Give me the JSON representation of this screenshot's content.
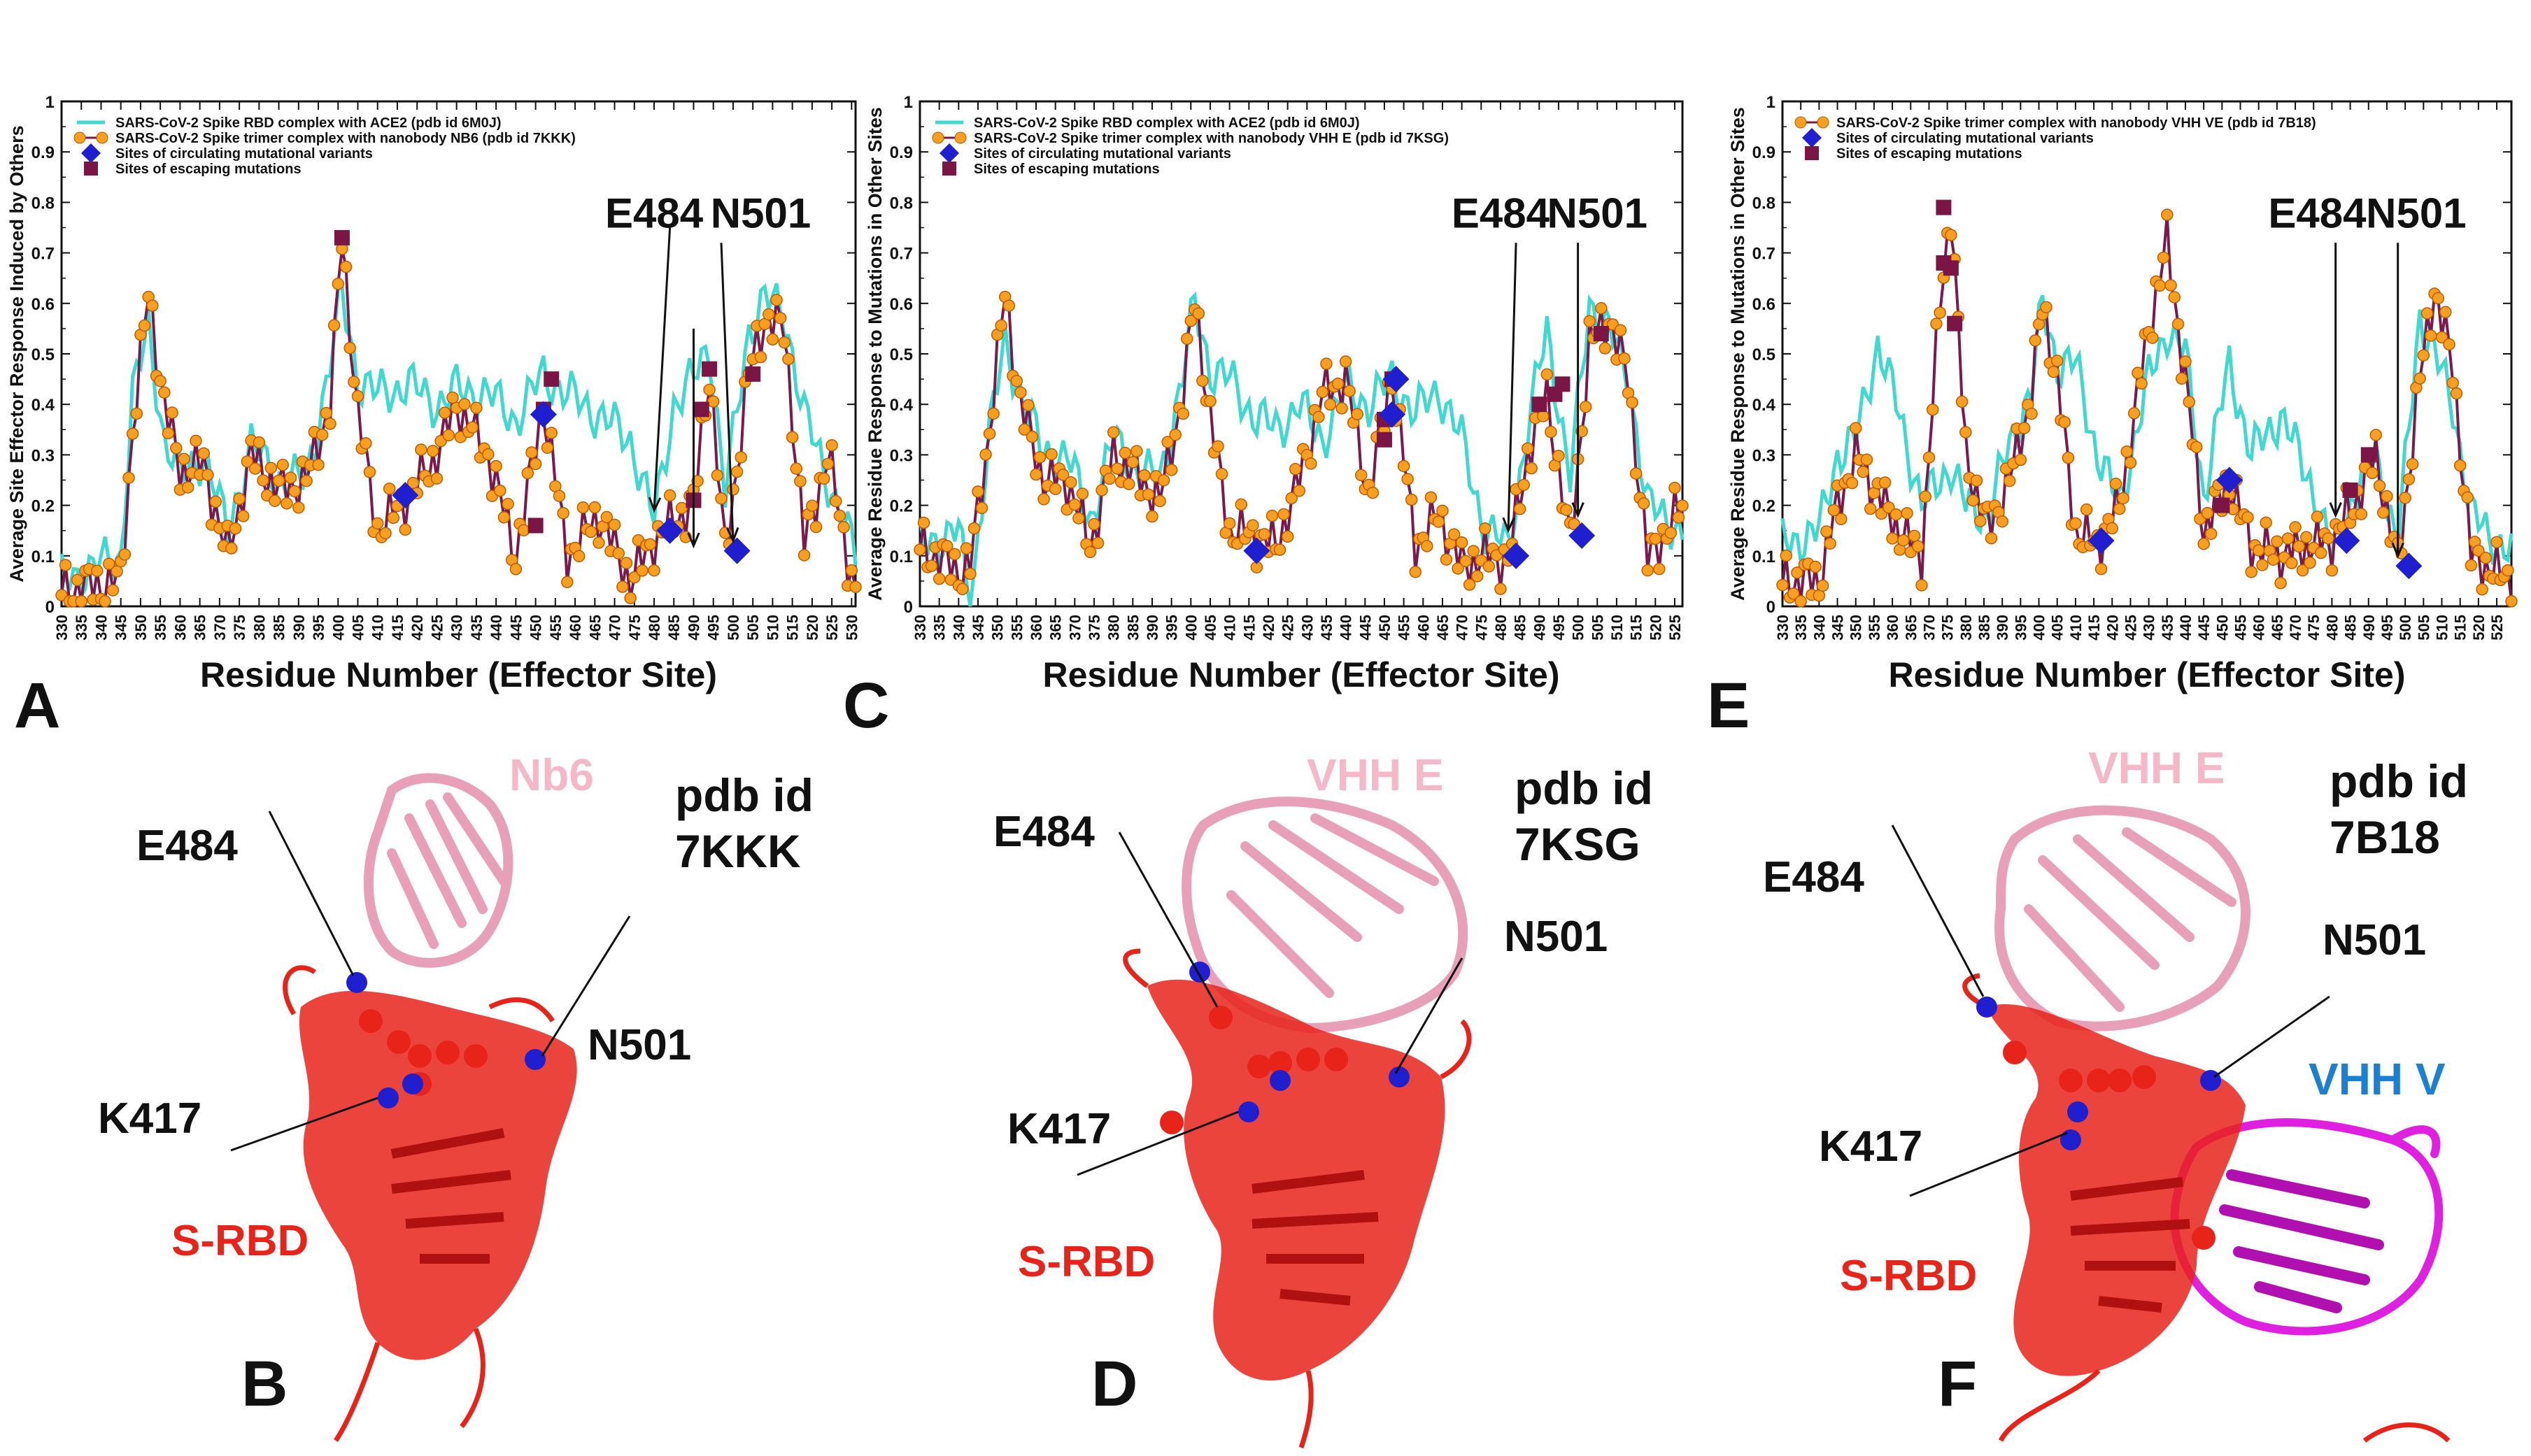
{
  "figure": {
    "panel_letters": [
      "A",
      "B",
      "C",
      "D",
      "E",
      "F"
    ]
  },
  "colors": {
    "ace2": "#3fd9d0",
    "trimer_line": "#7a1a4a",
    "trimer_marker": "#f7a020",
    "trimer_marker_edge": "#c05a00",
    "circulating": "#1f1fcf",
    "escaping": "#7a1545",
    "arrow": "#111111",
    "rbd": "#e8231a",
    "nanobody": "#e8a0b8",
    "vhhv": "#e020e0"
  },
  "chart_data": [
    {
      "type": "line",
      "panel": "A",
      "ylabel": "Average Site Effector Response Induced  by Others",
      "xlabel": "Residue Number (Effector Site)",
      "xlim": [
        330,
        531
      ],
      "ylim": [
        0,
        1
      ],
      "xticks": [
        330,
        335,
        340,
        345,
        350,
        355,
        360,
        365,
        370,
        375,
        380,
        385,
        390,
        395,
        400,
        405,
        410,
        415,
        420,
        425,
        430,
        435,
        440,
        445,
        450,
        455,
        460,
        465,
        470,
        475,
        480,
        485,
        490,
        495,
        500,
        505,
        510,
        515,
        520,
        525,
        530
      ],
      "yticks": [
        0,
        0.1,
        0.2,
        0.3,
        0.4,
        0.5,
        0.6,
        0.7,
        0.8,
        0.9,
        1
      ],
      "legend": [
        {
          "label": "SARS-CoV-2 Spike RBD complex with ACE2  (pdb id 6M0J)",
          "symbol": "line"
        },
        {
          "label": "SARS-CoV-2 Spike trimer complex with nanobody NB6 (pdb id 7KKK)",
          "symbol": "line-circle"
        },
        {
          "label": "Sites of circulating mutational variants",
          "symbol": "diamond"
        },
        {
          "label": "Sites of escaping mutations",
          "symbol": "square"
        }
      ],
      "labels": [
        {
          "text": "E484",
          "x": 480,
          "y": 0.75
        },
        {
          "text": "N501",
          "x": 507,
          "y": 0.75
        }
      ],
      "arrows": [
        {
          "from": [
            484,
            0.75
          ],
          "to": [
            480,
            0.19
          ]
        },
        {
          "from": [
            490,
            0.55
          ],
          "to": [
            490,
            0.12
          ]
        },
        {
          "from": [
            497,
            0.72
          ],
          "to": [
            500,
            0.13
          ]
        }
      ],
      "anchors": {
        "x": [
          330,
          345,
          348,
          352,
          356,
          360,
          366,
          372,
          378,
          385,
          392,
          398,
          401,
          405,
          410,
          418,
          425,
          430,
          438,
          445,
          452,
          458,
          466,
          474,
          480,
          485,
          490,
          494,
          498,
          504,
          508,
          513,
          518,
          524,
          531
        ]
      },
      "ace2": [
        0.05,
        0.1,
        0.42,
        0.55,
        0.33,
        0.26,
        0.3,
        0.15,
        0.32,
        0.25,
        0.25,
        0.48,
        0.62,
        0.45,
        0.42,
        0.44,
        0.4,
        0.43,
        0.42,
        0.37,
        0.46,
        0.42,
        0.38,
        0.33,
        0.17,
        0.4,
        0.45,
        0.52,
        0.22,
        0.55,
        0.61,
        0.58,
        0.38,
        0.25,
        0.1
      ],
      "trimer": [
        0.03,
        0.05,
        0.35,
        0.62,
        0.4,
        0.27,
        0.28,
        0.1,
        0.3,
        0.23,
        0.25,
        0.4,
        0.73,
        0.38,
        0.15,
        0.22,
        0.3,
        0.4,
        0.3,
        0.1,
        0.4,
        0.1,
        0.18,
        0.05,
        0.13,
        0.17,
        0.2,
        0.47,
        0.1,
        0.46,
        0.57,
        0.55,
        0.12,
        0.3,
        0.02
      ],
      "circulating": [
        {
          "x": 417,
          "y": 0.22
        },
        {
          "x": 452,
          "y": 0.38
        },
        {
          "x": 484,
          "y": 0.15
        },
        {
          "x": 501,
          "y": 0.11
        }
      ],
      "escaping": [
        {
          "x": 401,
          "y": 0.73
        },
        {
          "x": 450,
          "y": 0.16
        },
        {
          "x": 452,
          "y": 0.39
        },
        {
          "x": 454,
          "y": 0.45
        },
        {
          "x": 490,
          "y": 0.21
        },
        {
          "x": 492,
          "y": 0.39
        },
        {
          "x": 494,
          "y": 0.47
        },
        {
          "x": 505,
          "y": 0.46
        }
      ]
    },
    {
      "type": "line",
      "panel": "C",
      "ylabel": "Average  Residue Response  to Mutations in Other Sites",
      "xlabel": "Residue Number (Effector Site)",
      "xlim": [
        330,
        527
      ],
      "ylim": [
        0,
        1
      ],
      "xticks": [
        330,
        335,
        340,
        345,
        350,
        355,
        360,
        365,
        370,
        375,
        380,
        385,
        390,
        395,
        400,
        405,
        410,
        415,
        420,
        425,
        430,
        435,
        440,
        445,
        450,
        455,
        460,
        465,
        470,
        475,
        480,
        485,
        490,
        495,
        500,
        505,
        510,
        515,
        520,
        525
      ],
      "yticks": [
        0,
        0.1,
        0.2,
        0.3,
        0.4,
        0.5,
        0.6,
        0.7,
        0.8,
        0.9,
        1
      ],
      "legend": [
        {
          "label": "SARS-CoV-2 Spike RBD complex with ACE2 (pdb id 6M0J)",
          "symbol": "line"
        },
        {
          "label": "SARS-CoV-2 Spike trimer complex with nanobody VHH E (pdb id 7KSG)",
          "symbol": "line-circle"
        },
        {
          "label": "Sites of circulating mutational variants",
          "symbol": "diamond"
        },
        {
          "label": "Sites of escaping mutations",
          "symbol": "square"
        }
      ],
      "labels": [
        {
          "text": "E484",
          "x": 480,
          "y": 0.75
        },
        {
          "text": "N501",
          "x": 505,
          "y": 0.75
        }
      ],
      "arrows": [
        {
          "from": [
            484,
            0.72
          ],
          "to": [
            482,
            0.15
          ]
        },
        {
          "from": [
            500,
            0.72
          ],
          "to": [
            500,
            0.18
          ]
        }
      ],
      "anchors": {
        "x": [
          330,
          340,
          343,
          348,
          352,
          356,
          362,
          368,
          374,
          380,
          386,
          392,
          398,
          401,
          405,
          410,
          416,
          422,
          428,
          434,
          440,
          446,
          452,
          458,
          464,
          470,
          476,
          482,
          487,
          492,
          498,
          503,
          508,
          513,
          518,
          527
        ]
      },
      "ace2": [
        0.12,
        0.15,
        0.0,
        0.35,
        0.52,
        0.42,
        0.3,
        0.3,
        0.17,
        0.33,
        0.27,
        0.25,
        0.46,
        0.6,
        0.47,
        0.45,
        0.38,
        0.35,
        0.4,
        0.33,
        0.43,
        0.4,
        0.45,
        0.38,
        0.43,
        0.33,
        0.15,
        0.12,
        0.35,
        0.55,
        0.25,
        0.6,
        0.55,
        0.45,
        0.2,
        0.15
      ],
      "trimer": [
        0.12,
        0.07,
        0.08,
        0.35,
        0.62,
        0.4,
        0.25,
        0.25,
        0.12,
        0.3,
        0.26,
        0.21,
        0.42,
        0.61,
        0.37,
        0.15,
        0.14,
        0.12,
        0.25,
        0.42,
        0.45,
        0.22,
        0.46,
        0.12,
        0.18,
        0.08,
        0.1,
        0.09,
        0.3,
        0.42,
        0.12,
        0.52,
        0.57,
        0.45,
        0.09,
        0.2
      ],
      "circulating": [
        {
          "x": 417,
          "y": 0.11
        },
        {
          "x": 452,
          "y": 0.38
        },
        {
          "x": 453,
          "y": 0.45
        },
        {
          "x": 484,
          "y": 0.1
        },
        {
          "x": 501,
          "y": 0.14
        }
      ],
      "escaping": [
        {
          "x": 450,
          "y": 0.33
        },
        {
          "x": 450,
          "y": 0.37
        },
        {
          "x": 452,
          "y": 0.45
        },
        {
          "x": 490,
          "y": 0.4
        },
        {
          "x": 494,
          "y": 0.42
        },
        {
          "x": 496,
          "y": 0.44
        },
        {
          "x": 506,
          "y": 0.54
        }
      ]
    },
    {
      "type": "line",
      "panel": "E",
      "ylabel": "Average Residue Response to Mutations in Other Sites",
      "xlabel": "Residue Number (Effector Site)",
      "xlim": [
        330,
        529
      ],
      "ylim": [
        0,
        1
      ],
      "xticks": [
        330,
        335,
        340,
        345,
        350,
        355,
        360,
        365,
        370,
        375,
        380,
        385,
        390,
        395,
        400,
        405,
        410,
        415,
        420,
        425,
        430,
        435,
        440,
        445,
        450,
        455,
        460,
        465,
        470,
        475,
        480,
        485,
        490,
        495,
        500,
        505,
        510,
        515,
        520,
        525
      ],
      "yticks": [
        0,
        0.1,
        0.2,
        0.3,
        0.4,
        0.5,
        0.6,
        0.7,
        0.8,
        0.9,
        1
      ],
      "legend": [
        {
          "label": "SARS-CoV-2 Spike trimer complex with nanobody VHH VE (pdb id 7B18)",
          "symbol": "line-circle"
        },
        {
          "label": "Sites of circulating mutational variants",
          "symbol": "diamond"
        },
        {
          "label": "Sites of escaping mutations",
          "symbol": "square"
        }
      ],
      "labels": [
        {
          "text": "E484",
          "x": 476,
          "y": 0.75
        },
        {
          "text": "N501",
          "x": 503,
          "y": 0.75
        }
      ],
      "arrows": [
        {
          "from": [
            481,
            0.72
          ],
          "to": [
            481,
            0.18
          ]
        },
        {
          "from": [
            498,
            0.72
          ],
          "to": [
            498,
            0.1
          ]
        }
      ],
      "anchors": {
        "x": [
          330,
          340,
          345,
          350,
          356,
          362,
          368,
          373,
          376,
          380,
          386,
          392,
          398,
          401,
          405,
          410,
          416,
          422,
          430,
          435,
          440,
          445,
          452,
          458,
          466,
          474,
          480,
          486,
          492,
          498,
          504,
          508,
          513,
          518,
          529
        ]
      },
      "ace2": [
        0.12,
        0.15,
        0.3,
        0.33,
        0.52,
        0.38,
        0.2,
        0.25,
        0.28,
        0.2,
        0.18,
        0.32,
        0.43,
        0.6,
        0.48,
        0.48,
        0.3,
        0.2,
        0.45,
        0.55,
        0.5,
        0.22,
        0.48,
        0.3,
        0.38,
        0.25,
        0.1,
        0.22,
        0.3,
        0.12,
        0.58,
        0.5,
        0.4,
        0.18,
        0.1
      ],
      "trimer": [
        0.05,
        0.05,
        0.2,
        0.3,
        0.22,
        0.15,
        0.1,
        0.6,
        0.79,
        0.3,
        0.15,
        0.25,
        0.42,
        0.6,
        0.45,
        0.15,
        0.12,
        0.2,
        0.55,
        0.72,
        0.45,
        0.15,
        0.25,
        0.12,
        0.1,
        0.12,
        0.13,
        0.2,
        0.3,
        0.08,
        0.45,
        0.63,
        0.47,
        0.1,
        0.05
      ],
      "circulating": [
        {
          "x": 417,
          "y": 0.13
        },
        {
          "x": 452,
          "y": 0.25
        },
        {
          "x": 484,
          "y": 0.13
        },
        {
          "x": 501,
          "y": 0.08
        }
      ],
      "escaping": [
        {
          "x": 374,
          "y": 0.79
        },
        {
          "x": 374,
          "y": 0.68
        },
        {
          "x": 376,
          "y": 0.67
        },
        {
          "x": 377,
          "y": 0.56
        },
        {
          "x": 450,
          "y": 0.2
        },
        {
          "x": 485,
          "y": 0.23
        },
        {
          "x": 490,
          "y": 0.3
        }
      ]
    }
  ],
  "structures": [
    {
      "panel": "B",
      "nanobody_label": "Nb6",
      "pdb_label_line1": "pdb id",
      "pdb_label_line2": "7KKK",
      "site_labels": [
        "E484",
        "N501",
        "K417"
      ],
      "domain_label": "S-RBD"
    },
    {
      "panel": "D",
      "nanobody_label": "VHH E",
      "pdb_label_line1": "pdb id",
      "pdb_label_line2": "7KSG",
      "site_labels": [
        "E484",
        "N501",
        "K417"
      ],
      "domain_label": "S-RBD"
    },
    {
      "panel": "F",
      "nanobody_label": "VHH E",
      "second_label": "VHH V",
      "pdb_label_line1": "pdb id",
      "pdb_label_line2": "7B18",
      "site_labels": [
        "E484",
        "N501",
        "K417"
      ],
      "domain_label": "S-RBD"
    }
  ]
}
